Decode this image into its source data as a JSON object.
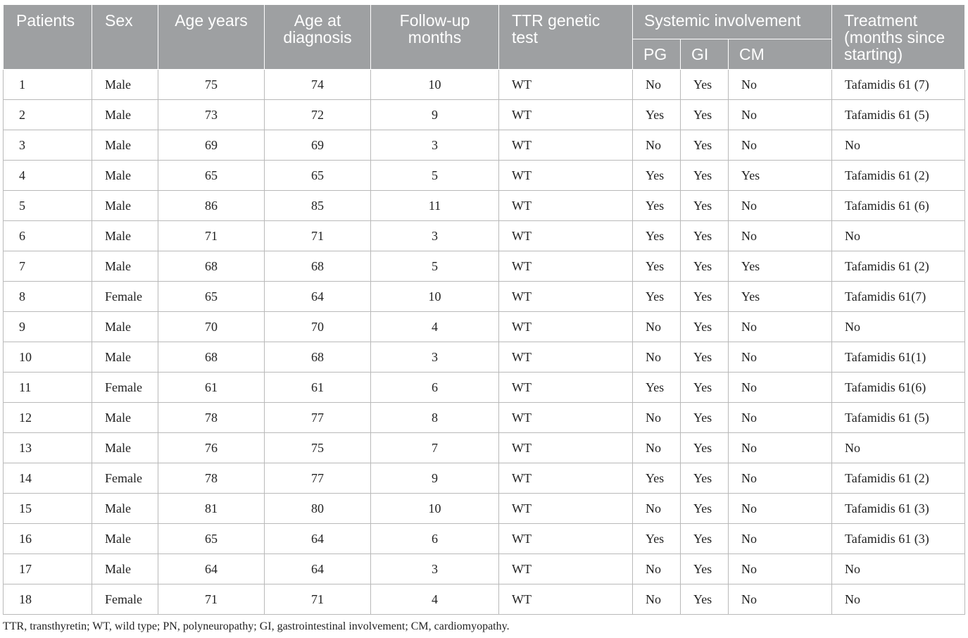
{
  "headers": {
    "patients": "Patients",
    "sex": "Sex",
    "age_years": "Age years",
    "age_at_diagnosis": "Age at diagnosis",
    "follow_up": "Follow-up months",
    "ttr": "TTR genetic test",
    "systemic": "Systemic involvement",
    "pg": "PG",
    "gi": "GI",
    "cm": "CM",
    "treatment": "Treatment (months since starting)"
  },
  "rows": [
    [
      "1",
      "Male",
      "75",
      "74",
      "10",
      "WT",
      "No",
      "Yes",
      "No",
      "Tafamidis 61 (7)"
    ],
    [
      "2",
      "Male",
      "73",
      "72",
      "9",
      "WT",
      "Yes",
      "Yes",
      "No",
      "Tafamidis 61 (5)"
    ],
    [
      "3",
      "Male",
      "69",
      "69",
      "3",
      "WT",
      "No",
      "Yes",
      "No",
      "No"
    ],
    [
      "4",
      "Male",
      "65",
      "65",
      "5",
      "WT",
      "Yes",
      "Yes",
      "Yes",
      "Tafamidis 61 (2)"
    ],
    [
      "5",
      "Male",
      "86",
      "85",
      "11",
      "WT",
      "Yes",
      "Yes",
      "No",
      "Tafamidis 61 (6)"
    ],
    [
      "6",
      "Male",
      "71",
      "71",
      "3",
      "WT",
      "Yes",
      "Yes",
      "No",
      "No"
    ],
    [
      "7",
      "Male",
      "68",
      "68",
      "5",
      "WT",
      "Yes",
      "Yes",
      "Yes",
      "Tafamidis 61 (2)"
    ],
    [
      "8",
      "Female",
      "65",
      "64",
      "10",
      "WT",
      "Yes",
      "Yes",
      "Yes",
      "Tafamidis 61(7)"
    ],
    [
      "9",
      "Male",
      "70",
      "70",
      "4",
      "WT",
      "No",
      "Yes",
      "No",
      "No"
    ],
    [
      "10",
      "Male",
      "68",
      "68",
      "3",
      "WT",
      "No",
      "Yes",
      "No",
      "Tafamidis 61(1)"
    ],
    [
      "11",
      "Female",
      "61",
      "61",
      "6",
      "WT",
      "Yes",
      "Yes",
      "No",
      "Tafamidis 61(6)"
    ],
    [
      "12",
      "Male",
      "78",
      "77",
      "8",
      "WT",
      "No",
      "Yes",
      "No",
      "Tafamidis 61 (5)"
    ],
    [
      "13",
      "Male",
      "76",
      "75",
      "7",
      "WT",
      "No",
      "Yes",
      "No",
      "No"
    ],
    [
      "14",
      "Female",
      "78",
      "77",
      "9",
      "WT",
      "Yes",
      "Yes",
      "No",
      "Tafamidis 61 (2)"
    ],
    [
      "15",
      "Male",
      "81",
      "80",
      "10",
      "WT",
      "No",
      "Yes",
      "No",
      "Tafamidis 61 (3)"
    ],
    [
      "16",
      "Male",
      "65",
      "64",
      "6",
      "WT",
      "Yes",
      "Yes",
      "No",
      "Tafamidis 61 (3)"
    ],
    [
      "17",
      "Male",
      "64",
      "64",
      "3",
      "WT",
      "No",
      "Yes",
      "No",
      "No"
    ],
    [
      "18",
      "Female",
      "71",
      "71",
      "4",
      "WT",
      "No",
      "Yes",
      "No",
      "No"
    ]
  ],
  "footnote": "TTR, transthyretin; WT, wild type; PN, polyneuropathy; GI, gastrointestinal involvement; CM, cardiomyopathy."
}
